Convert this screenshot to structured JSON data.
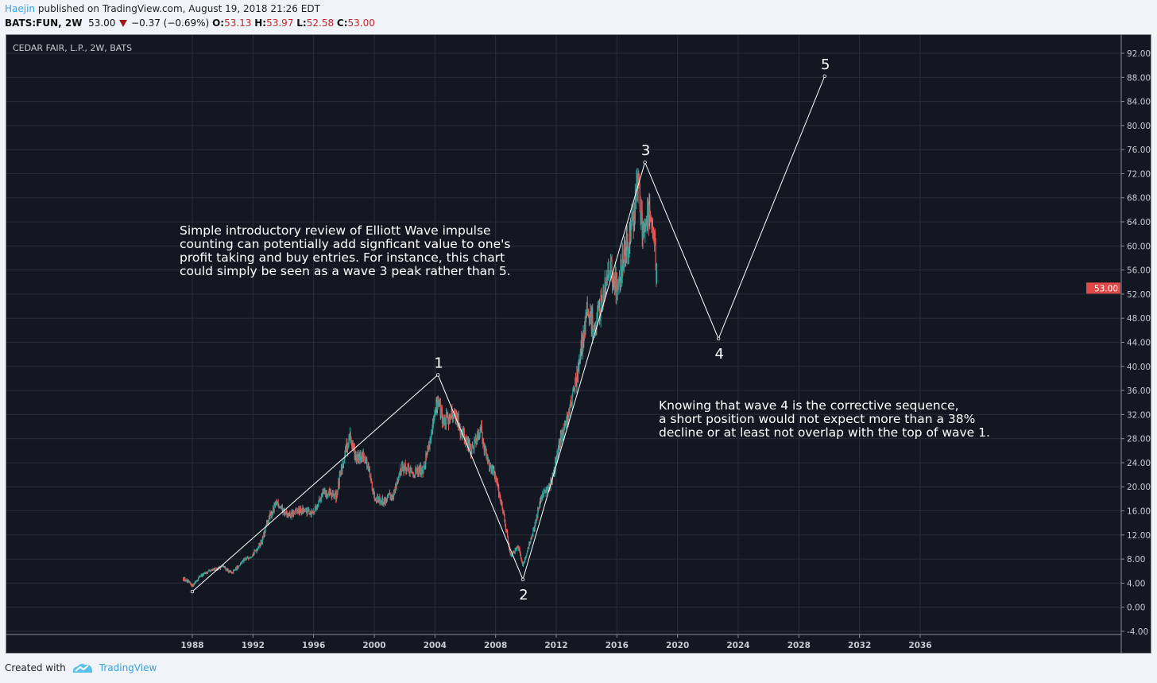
{
  "header": {
    "author": "Haejin",
    "published_text": "published on TradingView.com, August 19, 2018 21:26 EDT",
    "symbol": "BATS:FUN, 2W",
    "last": "53.00",
    "change": "−0.37 (−0.69%)",
    "open_label": "O:",
    "open": "53.13",
    "high_label": "H:",
    "high": "53.97",
    "low_label": "L:",
    "low": "52.58",
    "close_label": "C:",
    "close": "53.00"
  },
  "footer": {
    "created_with": "Created with",
    "brand": "TradingView"
  },
  "colors": {
    "background": "#131722",
    "grid": "#2a2e39",
    "up": "#26a69a",
    "down": "#ef5350",
    "wave_line": "#ffffff",
    "price_tag": "#e04848"
  },
  "chart_data": {
    "type": "candlestick",
    "title": "CEDAR FAIR, L.P., 2W, BATS",
    "interval": "2W",
    "ylim": [
      -4,
      94
    ],
    "xlim": [
      1976.3,
      2044
    ],
    "y_ticks": [
      "92.00",
      "88.00",
      "84.00",
      "80.00",
      "76.00",
      "72.00",
      "68.00",
      "64.00",
      "60.00",
      "56.00",
      "52.00",
      "48.00",
      "44.00",
      "40.00",
      "36.00",
      "32.00",
      "28.00",
      "24.00",
      "20.00",
      "16.00",
      "12.00",
      "8.00",
      "4.00",
      "0.00",
      "-4.00"
    ],
    "x_ticks": [
      "1988",
      "1992",
      "1996",
      "2000",
      "2004",
      "2008",
      "2012",
      "2016",
      "2020",
      "2024",
      "2028",
      "2032",
      "2036"
    ],
    "grid": true,
    "last_price": "53.00",
    "approx_price_path": [
      [
        1987.4,
        4.8
      ],
      [
        1988.0,
        3.6
      ],
      [
        1988.5,
        5.2
      ],
      [
        1989.2,
        6.0
      ],
      [
        1990.0,
        6.8
      ],
      [
        1990.6,
        5.6
      ],
      [
        1991.3,
        7.6
      ],
      [
        1992.0,
        8.8
      ],
      [
        1992.6,
        11.0
      ],
      [
        1993.0,
        14.5
      ],
      [
        1993.6,
        17.5
      ],
      [
        1994.3,
        15.0
      ],
      [
        1995.0,
        16.0
      ],
      [
        1996.0,
        15.8
      ],
      [
        1996.6,
        19.0
      ],
      [
        1997.5,
        18.5
      ],
      [
        1998.0,
        25.0
      ],
      [
        1998.4,
        28.5
      ],
      [
        1998.8,
        24.5
      ],
      [
        1999.4,
        25.0
      ],
      [
        2000.0,
        18.5
      ],
      [
        2000.6,
        17.5
      ],
      [
        2001.3,
        19.0
      ],
      [
        2001.8,
        23.5
      ],
      [
        2002.5,
        22.0
      ],
      [
        2003.2,
        23.0
      ],
      [
        2003.8,
        29.0
      ],
      [
        2004.2,
        34.5
      ],
      [
        2004.6,
        30.5
      ],
      [
        2005.2,
        32.5
      ],
      [
        2005.8,
        29.0
      ],
      [
        2006.4,
        26.0
      ],
      [
        2007.0,
        30.0
      ],
      [
        2007.4,
        25.0
      ],
      [
        2008.0,
        21.5
      ],
      [
        2008.5,
        16.0
      ],
      [
        2009.0,
        8.5
      ],
      [
        2009.5,
        10.0
      ],
      [
        2009.8,
        7.0
      ],
      [
        2010.3,
        11.0
      ],
      [
        2011.0,
        18.0
      ],
      [
        2011.7,
        21.0
      ],
      [
        2012.3,
        28.0
      ],
      [
        2012.8,
        32.0
      ],
      [
        2013.5,
        40.0
      ],
      [
        2014.0,
        49.0
      ],
      [
        2014.6,
        46.0
      ],
      [
        2015.0,
        51.0
      ],
      [
        2015.5,
        57.0
      ],
      [
        2016.0,
        53.0
      ],
      [
        2016.5,
        58.5
      ],
      [
        2017.0,
        63.0
      ],
      [
        2017.4,
        71.0
      ],
      [
        2017.7,
        62.0
      ],
      [
        2018.0,
        67.0
      ],
      [
        2018.3,
        64.0
      ],
      [
        2018.5,
        60.0
      ],
      [
        2018.65,
        53.0
      ]
    ],
    "wave_count": [
      {
        "label": "",
        "year": 1988.0,
        "price": 2.6
      },
      {
        "label": "1",
        "year": 2004.2,
        "price": 38.6
      },
      {
        "label": "2",
        "year": 2009.8,
        "price": 4.6
      },
      {
        "label": "3",
        "year": 2017.85,
        "price": 73.9
      },
      {
        "label": "4",
        "year": 2022.7,
        "price": 44.6
      },
      {
        "label": "5",
        "year": 2029.7,
        "price": 88.2
      }
    ],
    "annotations": [
      "Simple introductory review of Elliott Wave impulse\ncounting can potentially add signficant value to one's\nprofit taking and buy entries. For instance, this chart\ncould simply be seen as a wave 3 peak rather than 5.",
      "Knowing that wave 4 is the corrective sequence,\na short position would not expect more than a 38%\ndecline or at least not overlap with the top of wave 1."
    ]
  }
}
